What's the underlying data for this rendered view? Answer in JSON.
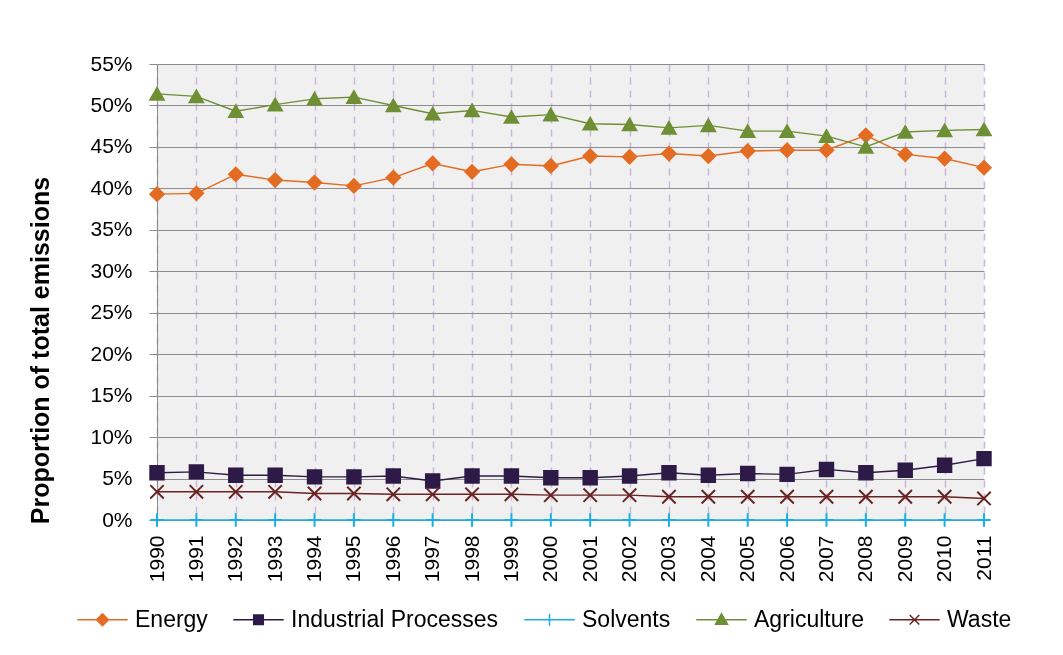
{
  "chart_data": {
    "type": "line",
    "ylabel": "Proportion of total emissions",
    "categories": [
      "1990",
      "1991",
      "1992",
      "1993",
      "1994",
      "1995",
      "1996",
      "1997",
      "1998",
      "1999",
      "2000",
      "2001",
      "2002",
      "2003",
      "2004",
      "2005",
      "2006",
      "2007",
      "2008",
      "2009",
      "2010",
      "2011"
    ],
    "ylim": [
      0,
      55
    ],
    "yticks": [
      {
        "value": 0,
        "label": "0%"
      },
      {
        "value": 5,
        "label": "5%"
      },
      {
        "value": 10,
        "label": "10%"
      },
      {
        "value": 15,
        "label": "15%"
      },
      {
        "value": 20,
        "label": "20%"
      },
      {
        "value": 25,
        "label": "25%"
      },
      {
        "value": 30,
        "label": "30%"
      },
      {
        "value": 35,
        "label": "35%"
      },
      {
        "value": 40,
        "label": "40%"
      },
      {
        "value": 45,
        "label": "45%"
      },
      {
        "value": 50,
        "label": "50%"
      },
      {
        "value": 55,
        "label": "55%"
      }
    ],
    "grid": true,
    "legend": "bottom",
    "line_style": "solid",
    "series": [
      {
        "name": "Energy",
        "color": "#e46c22",
        "marker": "diamond",
        "values": [
          39.3,
          39.4,
          41.7,
          41.0,
          40.7,
          40.3,
          41.3,
          43.0,
          42.0,
          42.9,
          42.7,
          43.9,
          43.8,
          44.2,
          43.9,
          44.5,
          44.6,
          44.6,
          46.4,
          44.1,
          43.6,
          42.5
        ]
      },
      {
        "name": "Industrial Processes",
        "color": "#2e1a47",
        "marker": "square",
        "values": [
          5.7,
          5.8,
          5.4,
          5.4,
          5.2,
          5.2,
          5.3,
          4.7,
          5.3,
          5.3,
          5.1,
          5.1,
          5.3,
          5.7,
          5.4,
          5.6,
          5.5,
          6.1,
          5.7,
          6.0,
          6.6,
          7.4
        ]
      },
      {
        "name": "Solvents",
        "color": "#1aaee3",
        "marker": "plus",
        "values": [
          0,
          0,
          0,
          0,
          0,
          0,
          0,
          0,
          0,
          0,
          0,
          0,
          0,
          0,
          0,
          0,
          0,
          0,
          0,
          0,
          0,
          0
        ]
      },
      {
        "name": "Agriculture",
        "color": "#6e8f34",
        "marker": "triangle",
        "values": [
          51.4,
          51.1,
          49.3,
          50.1,
          50.8,
          51.0,
          50.0,
          49.0,
          49.4,
          48.6,
          48.9,
          47.8,
          47.7,
          47.3,
          47.6,
          46.9,
          46.9,
          46.3,
          45.0,
          46.8,
          47.0,
          47.1
        ]
      },
      {
        "name": "Waste",
        "color": "#6a2323",
        "marker": "cross",
        "values": [
          3.4,
          3.4,
          3.4,
          3.4,
          3.2,
          3.2,
          3.1,
          3.1,
          3.1,
          3.1,
          3.0,
          3.0,
          3.0,
          2.8,
          2.8,
          2.8,
          2.8,
          2.8,
          2.8,
          2.8,
          2.8,
          2.6
        ]
      }
    ]
  }
}
